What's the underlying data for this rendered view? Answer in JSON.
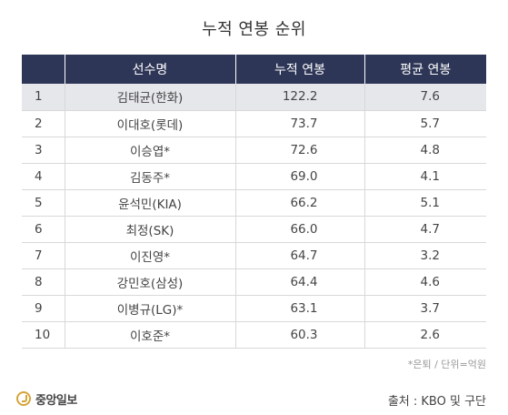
{
  "title": "누적 연봉 순위",
  "table": {
    "headers": [
      "",
      "선수명",
      "누적 연봉",
      "평균 연봉"
    ],
    "rows": [
      {
        "rank": "1",
        "name": "김태균(한화)",
        "total": "122.2",
        "avg": "7.6"
      },
      {
        "rank": "2",
        "name": "이대호(롯데)",
        "total": "73.7",
        "avg": "5.7"
      },
      {
        "rank": "3",
        "name": "이승엽*",
        "total": "72.6",
        "avg": "4.8"
      },
      {
        "rank": "4",
        "name": "김동주*",
        "total": "69.0",
        "avg": "4.1"
      },
      {
        "rank": "5",
        "name": "윤석민(KIA)",
        "total": "66.2",
        "avg": "5.1"
      },
      {
        "rank": "6",
        "name": "최정(SK)",
        "total": "66.0",
        "avg": "4.7"
      },
      {
        "rank": "7",
        "name": "이진영*",
        "total": "64.7",
        "avg": "3.2"
      },
      {
        "rank": "8",
        "name": "강민호(삼성)",
        "total": "64.4",
        "avg": "4.6"
      },
      {
        "rank": "9",
        "name": "이병규(LG)*",
        "total": "63.1",
        "avg": "3.7"
      },
      {
        "rank": "10",
        "name": "이호준*",
        "total": "60.3",
        "avg": "2.6"
      }
    ]
  },
  "note": "*은퇴 / 단위=억원",
  "footer": {
    "logo_text": "중앙일보",
    "source": "출처 : KBO 및 구단"
  },
  "colors": {
    "header_bg": "#2d3656",
    "highlight_row_bg": "#e6e7eb",
    "logo_accent": "#d4a53a"
  }
}
